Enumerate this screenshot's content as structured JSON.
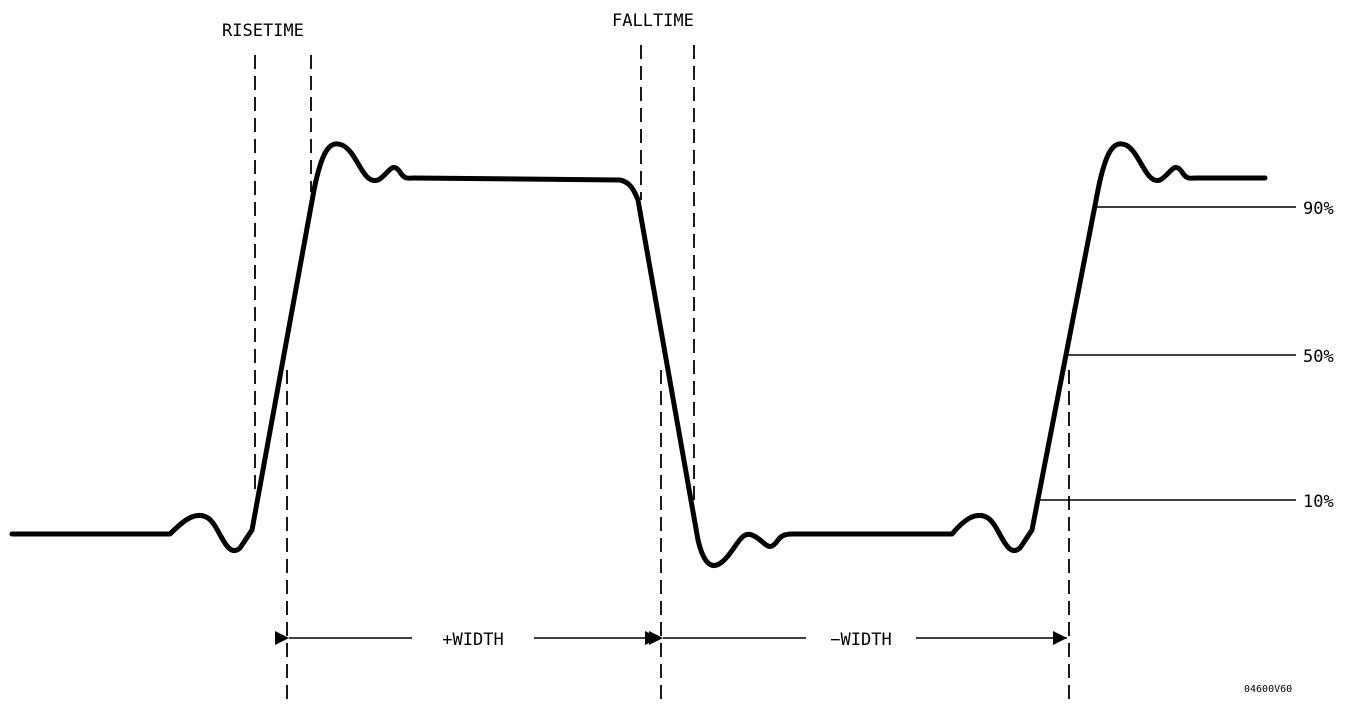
{
  "labels": {
    "risetime": "RISETIME",
    "falltime": "FALLTIME",
    "pct90": "90%",
    "pct50": "50%",
    "pct10": "10%",
    "plus_width": "+WIDTH",
    "minus_width": "−WIDTH",
    "figure_id": "04600V60"
  },
  "colors": {
    "ink": "#000000",
    "background": "#ffffff"
  }
}
